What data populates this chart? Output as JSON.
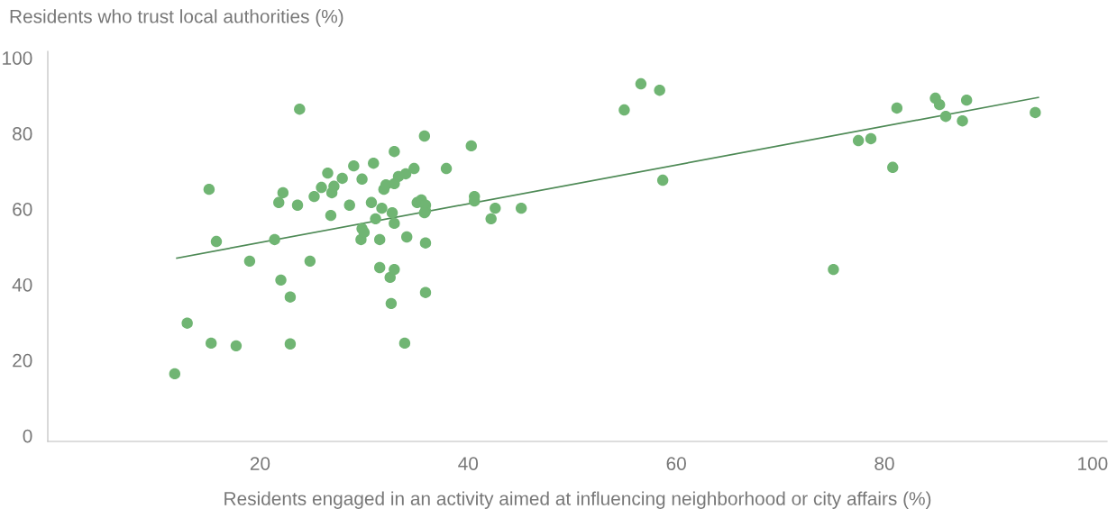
{
  "chart_data": {
    "type": "scatter",
    "ylabel": "Residents who trust local authorities (%)",
    "xlabel": "Residents engaged in an activity aimed at influencing neighborhood or city affairs (%)",
    "xlim": [
      -0.4,
      101.4
    ],
    "ylim": [
      -1.5,
      101.7
    ],
    "xticks": [
      20,
      40,
      60,
      80,
      100
    ],
    "yticks": [
      0,
      20,
      40,
      60,
      80,
      100
    ],
    "grid": false,
    "legend": false,
    "marker": "circle",
    "series": [
      {
        "color": "#70b573",
        "x": [
          11.8,
          13.0,
          15.1,
          15.3,
          15.8,
          17.7,
          19.0,
          21.4,
          21.8,
          22.0,
          22.2,
          22.9,
          22.9,
          23.6,
          23.8,
          24.8,
          25.2,
          25.9,
          26.5,
          26.8,
          26.9,
          27.1,
          27.9,
          28.6,
          29.0,
          29.7,
          29.8,
          29.8,
          30.0,
          30.7,
          30.9,
          31.1,
          31.5,
          31.5,
          31.7,
          31.9,
          32.1,
          32.5,
          32.6,
          32.7,
          32.9,
          32.9,
          32.9,
          32.9,
          33.3,
          33.9,
          34.0,
          34.1,
          34.8,
          35.1,
          35.5,
          35.8,
          35.9,
          35.9,
          35.9,
          35.9,
          35.8,
          37.9,
          40.3,
          40.6,
          40.6,
          42.2,
          42.6,
          45.1,
          55.0,
          56.6,
          58.4,
          58.7,
          75.1,
          77.5,
          78.7,
          80.8,
          81.2,
          84.9,
          85.3,
          85.9,
          87.5,
          87.9,
          94.5
        ],
        "values": [
          16.4,
          29.8,
          65.2,
          24.5,
          51.4,
          23.8,
          46.2,
          51.9,
          61.7,
          41.2,
          64.3,
          36.7,
          24.3,
          61.0,
          86.4,
          46.2,
          63.3,
          65.7,
          69.5,
          58.3,
          64.3,
          66.0,
          68.1,
          61.0,
          71.4,
          51.9,
          67.9,
          54.8,
          53.8,
          61.7,
          72.1,
          57.4,
          44.5,
          51.9,
          60.2,
          65.2,
          66.4,
          41.9,
          35.0,
          59.0,
          66.7,
          75.2,
          56.2,
          44.0,
          68.6,
          24.5,
          69.3,
          52.6,
          70.7,
          61.7,
          62.4,
          79.3,
          61.0,
          59.5,
          51.0,
          37.9,
          59.0,
          70.7,
          76.7,
          63.3,
          62.1,
          57.4,
          60.2,
          60.2,
          86.2,
          93.1,
          91.4,
          67.6,
          44.0,
          78.1,
          78.6,
          71.0,
          86.7,
          89.3,
          87.6,
          84.5,
          83.3,
          88.8,
          85.5
        ]
      },
      {
        "type": "line",
        "color": "#4e8a56",
        "x": [
          12.0,
          94.8
        ],
        "values": [
          47.0,
          89.5
        ],
        "marker": "none",
        "line_style": "solid"
      }
    ]
  }
}
